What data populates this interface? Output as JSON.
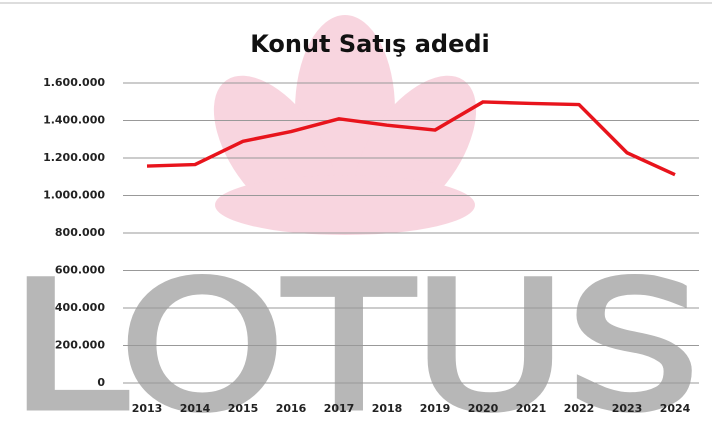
{
  "chart_data": {
    "type": "line",
    "title": "Konut Satış adedi",
    "watermark": "LOTUS",
    "categories": [
      "2013",
      "2014",
      "2015",
      "2016",
      "2017",
      "2018",
      "2019",
      "2020",
      "2021",
      "2022",
      "2023",
      "2024"
    ],
    "series": [
      {
        "name": "Konut Satış adedi",
        "color": "#e8141c",
        "values": [
          1157000,
          1165000,
          1289000,
          1341000,
          1409000,
          1375000,
          1349000,
          1499000,
          1491000,
          1485000,
          1228000,
          1111000
        ]
      }
    ],
    "ylim": [
      0,
      1600000
    ],
    "yticks": [
      0,
      {
        "value": 200000,
        "label": "200.000"
      },
      {
        "value": 400000,
        "label": "400.000"
      },
      {
        "value": 600000,
        "label": "600.000"
      },
      {
        "value": 800000,
        "label": "800.000"
      },
      {
        "value": 1000000,
        "label": "1.000.000"
      },
      {
        "value": 1200000,
        "label": "1.200.000"
      },
      {
        "value": 1400000,
        "label": "1.400.000"
      },
      {
        "value": 1600000,
        "label": "1.600.000"
      }
    ],
    "grid": true,
    "legend": false
  }
}
